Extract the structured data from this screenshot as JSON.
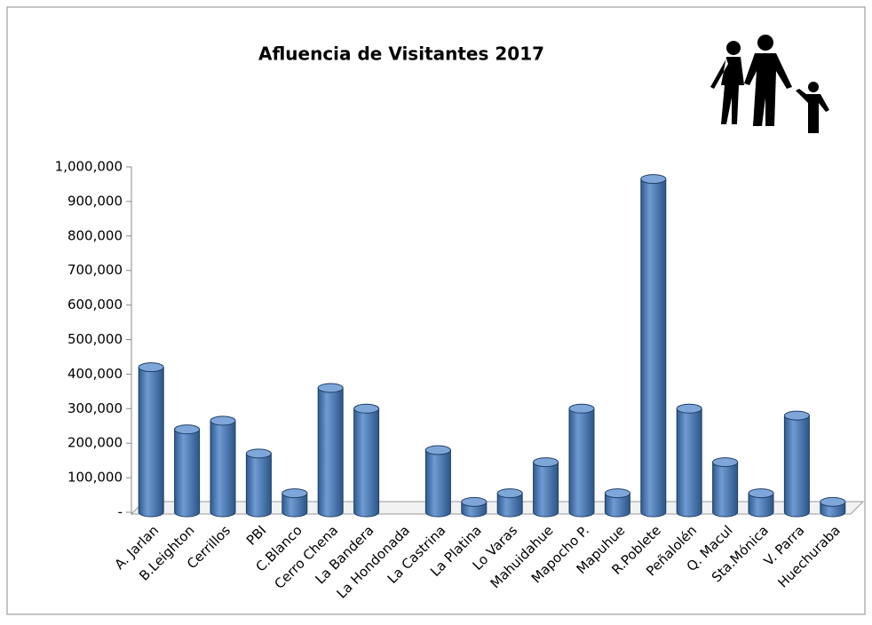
{
  "chart_data": {
    "type": "bar",
    "title": "Afluencia de Visitantes 2017",
    "categories": [
      "A. Jarlan",
      "B.Leighton",
      "Cerrillos",
      "PBI",
      "C.Blanco",
      "Cerro Chena",
      "La Bandera",
      "La Hondonada",
      "La Castrina",
      "La Platina",
      "Lo Varas",
      "Mahuidahue",
      "Mapocho P.",
      "Mapuhue",
      "R.Poblete",
      "Peñalolén",
      "Q. Macul",
      "Sta.Mónica",
      "V. Parra",
      "Huechuraba"
    ],
    "values": [
      420000,
      240000,
      265000,
      170000,
      55000,
      360000,
      300000,
      null,
      180000,
      30000,
      55000,
      145000,
      300000,
      55000,
      965000,
      300000,
      145000,
      55000,
      280000,
      30000
    ],
    "color": "#4f81bd",
    "ylim": [
      0,
      1000000
    ],
    "yticks": [
      {
        "value": 0,
        "label": "-"
      },
      {
        "value": 100000,
        "label": "100,000"
      },
      {
        "value": 200000,
        "label": "200,000"
      },
      {
        "value": 300000,
        "label": "300,000"
      },
      {
        "value": 400000,
        "label": "400,000"
      },
      {
        "value": 500000,
        "label": "500,000"
      },
      {
        "value": 600000,
        "label": "600,000"
      },
      {
        "value": 700000,
        "label": "700,000"
      },
      {
        "value": 800000,
        "label": "800,000"
      },
      {
        "value": 900000,
        "label": "900,000"
      },
      {
        "value": 1000000,
        "label": "1,000,000"
      }
    ]
  }
}
